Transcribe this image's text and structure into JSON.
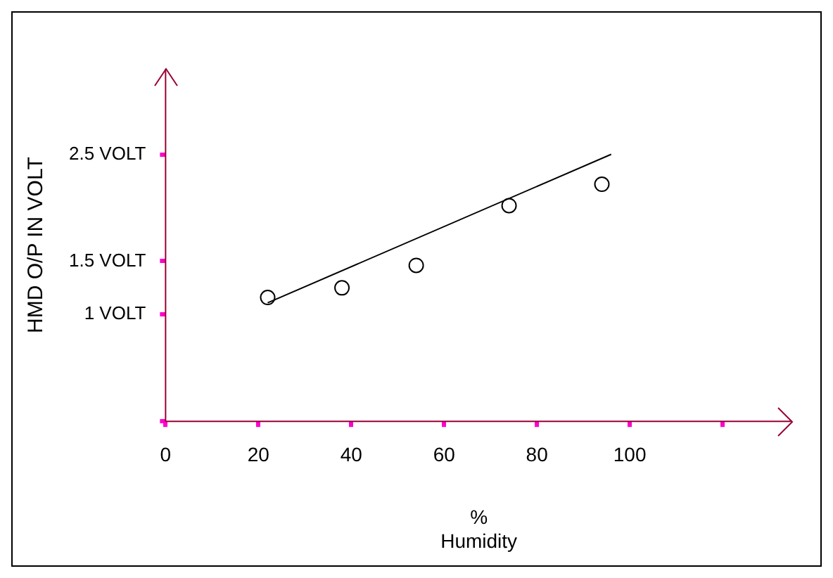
{
  "chart_data": {
    "type": "scatter",
    "xlabel": "% Humidity",
    "ylabel": "HMD O/P IN VOLT",
    "xlim": [
      0,
      135
    ],
    "ylim": [
      0,
      3.3
    ],
    "xticks": [
      {
        "value": 0,
        "label": "0"
      },
      20,
      40,
      60,
      80,
      100,
      {
        "value": 120,
        "label": null
      }
    ],
    "yticks": [
      {
        "value": 0,
        "label": null
      },
      {
        "value": 1,
        "label": "1 VOLT"
      },
      {
        "value": 1.5,
        "label": "1.5 VOLT"
      },
      {
        "value": 2.5,
        "label": "2.5 VOLT"
      }
    ],
    "series": [
      {
        "color": "#000000",
        "x": [
          22,
          38,
          54,
          74,
          94
        ],
        "values": [
          1.16,
          1.25,
          1.46,
          2.02,
          2.22
        ],
        "marker": "circle"
      },
      {
        "type": "line",
        "color": "#000000",
        "x": [
          22,
          96
        ],
        "values": [
          1.11,
          2.5
        ],
        "marker": "none"
      }
    ],
    "grid": false,
    "legend": false
  }
}
